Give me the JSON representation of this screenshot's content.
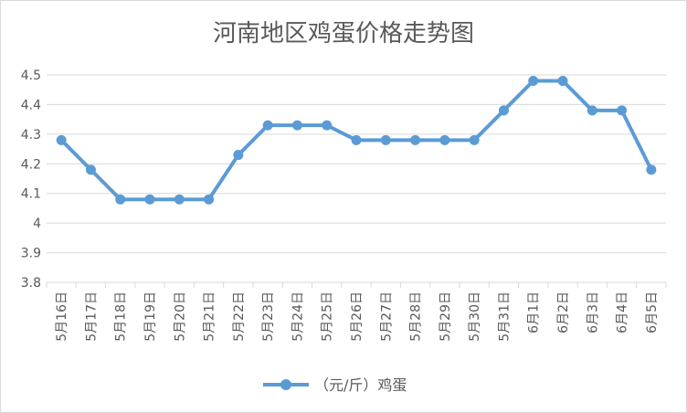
{
  "chart_data": {
    "type": "line",
    "title": "河南地区鸡蛋价格走势图",
    "xlabel": "",
    "ylabel": "",
    "categories": [
      "5月16日",
      "5月17日",
      "5月18日",
      "5月19日",
      "5月20日",
      "5月21日",
      "5月22日",
      "5月23日",
      "5月24日",
      "5月25日",
      "5月26日",
      "5月27日",
      "5月28日",
      "5月29日",
      "5月30日",
      "5月31日",
      "6月1日",
      "6月2日",
      "6月3日",
      "6月4日",
      "6月5日"
    ],
    "series": [
      {
        "name": "（元/斤）鸡蛋",
        "values": [
          4.28,
          4.18,
          4.08,
          4.08,
          4.08,
          4.08,
          4.23,
          4.33,
          4.33,
          4.33,
          4.28,
          4.28,
          4.28,
          4.28,
          4.28,
          4.38,
          4.48,
          4.48,
          4.38,
          4.38,
          4.18
        ]
      }
    ],
    "ylim": [
      3.8,
      4.5
    ],
    "yticks": [
      "3.8",
      "3.9",
      "4",
      "4.1",
      "4.2",
      "4.3",
      "4.4",
      "4.5"
    ],
    "grid": true,
    "legend": "bottom",
    "colors": {
      "line": "#5b9bd5",
      "grid": "#d9d9d9",
      "text": "#595959"
    }
  }
}
